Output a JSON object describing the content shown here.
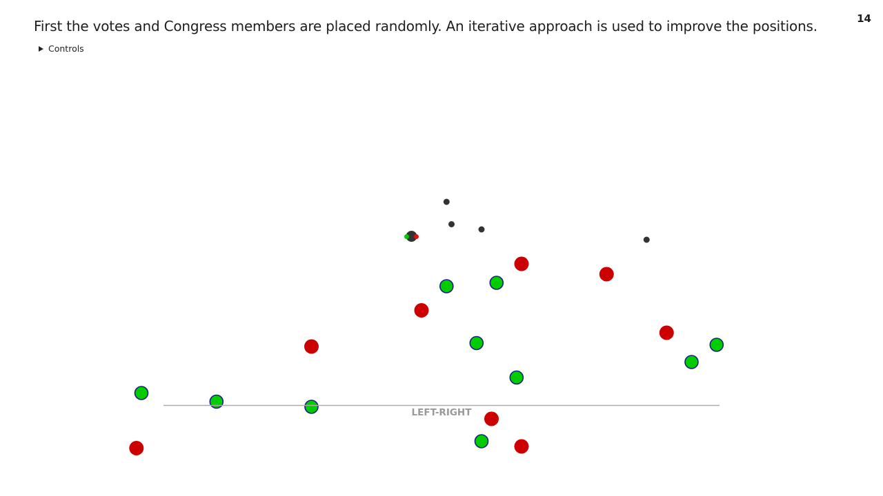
{
  "slide": {
    "headline": "First the votes and Congress members are placed randomly. An iterative approach is used to improve the positions.",
    "number": "14",
    "controls_label": "Controls"
  },
  "chart_data": {
    "type": "scatter",
    "xlabel": "LEFT-RIGHT",
    "colors": {
      "member_green": "#00cc00",
      "member_green_outline": "#1a1a8c",
      "member_red": "#cc0000",
      "vote": "#333333",
      "axis": "#aaaaaa"
    },
    "members_green": [
      [
        -0.6,
        -0.25
      ],
      [
        -0.45,
        -0.3
      ],
      [
        -0.26,
        -0.33
      ],
      [
        0.01,
        0.37
      ],
      [
        0.07,
        0.04
      ],
      [
        0.11,
        0.39
      ],
      [
        0.08,
        -0.53
      ],
      [
        0.15,
        -0.16
      ],
      [
        0.5,
        -0.07
      ],
      [
        0.55,
        0.03
      ]
    ],
    "members_red": [
      [
        -0.61,
        -0.57
      ],
      [
        -0.26,
        0.02
      ],
      [
        -0.04,
        0.23
      ],
      [
        0.1,
        -0.4
      ],
      [
        0.16,
        -0.56
      ],
      [
        0.16,
        0.5
      ],
      [
        0.33,
        0.44
      ],
      [
        0.45,
        0.1
      ]
    ],
    "votes": [
      [
        -0.06,
        0.66
      ],
      [
        0.02,
        0.73
      ],
      [
        0.01,
        0.86
      ],
      [
        0.08,
        0.7
      ],
      [
        0.41,
        0.64
      ]
    ],
    "vote_highlight": {
      "center": [
        -0.06,
        0.66
      ],
      "yes_color": "#00cc00",
      "no_color": "#dd1111"
    }
  }
}
